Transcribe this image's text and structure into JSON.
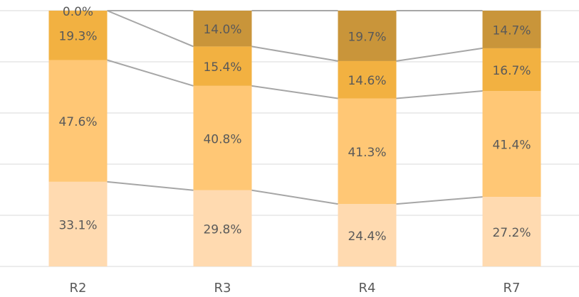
{
  "chart_data": {
    "type": "stacked_bar_100",
    "categories": [
      "R2",
      "R3",
      "R4",
      "R7"
    ],
    "series": [
      {
        "color": "#FFDAB0",
        "values": [
          33.1,
          29.8,
          24.4,
          27.2
        ],
        "value_labels": [
          "33.1%",
          "29.8%",
          "24.4%",
          "27.2%"
        ]
      },
      {
        "color": "#FFC775",
        "values": [
          47.6,
          40.8,
          41.3,
          41.4
        ],
        "value_labels": [
          "47.6%",
          "40.8%",
          "41.3%",
          "41.4%"
        ]
      },
      {
        "color": "#F2B141",
        "values": [
          19.3,
          15.4,
          14.6,
          16.7
        ],
        "value_labels": [
          "19.3%",
          "15.4%",
          "14.6%",
          "16.7%"
        ]
      },
      {
        "color": "#C9953A",
        "values": [
          0.0,
          14.0,
          19.7,
          14.7
        ],
        "value_labels": [
          "0.0%",
          "14.0%",
          "19.7%",
          "14.7%"
        ]
      }
    ],
    "ylim": [
      0,
      100
    ],
    "yticks": [
      0,
      20,
      40,
      60,
      80,
      100
    ],
    "grid": true,
    "series_lines": true
  }
}
